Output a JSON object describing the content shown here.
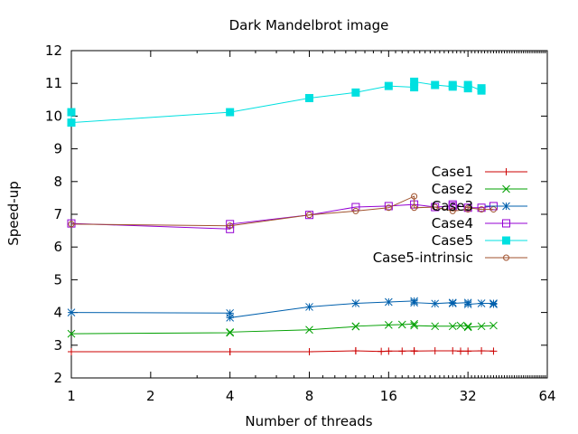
{
  "chart_data": {
    "type": "line",
    "title": "Dark Mandelbrot image",
    "xlabel": "Number of threads",
    "ylabel": "Speed-up",
    "x_scale": "log2",
    "xlim": [
      1,
      64
    ],
    "ylim": [
      2,
      12
    ],
    "x_ticks": [
      1,
      2,
      4,
      8,
      16,
      32,
      64
    ],
    "x_tick_labels": [
      "1",
      "2",
      "4",
      "8",
      "16",
      "32",
      "64"
    ],
    "y_ticks": [
      2,
      3,
      4,
      5,
      6,
      7,
      8,
      9,
      10,
      11,
      12
    ],
    "y_tick_labels": [
      "2",
      "3",
      "4",
      "5",
      "6",
      "7",
      "8",
      "9",
      "10",
      "11",
      "12"
    ],
    "grid": false,
    "legend_position": "right",
    "series": [
      {
        "name": "Case1",
        "color": "#cc0000",
        "marker": "plus",
        "points": [
          [
            1,
            2.8
          ],
          [
            1,
            2.8
          ],
          [
            4,
            2.8
          ],
          [
            4,
            2.8
          ],
          [
            8,
            2.8
          ],
          [
            12,
            2.83
          ],
          [
            12,
            2.83
          ],
          [
            15,
            2.81
          ],
          [
            16,
            2.82
          ],
          [
            18,
            2.82
          ],
          [
            20,
            2.83
          ],
          [
            20,
            2.82
          ],
          [
            24,
            2.83
          ],
          [
            28,
            2.83
          ],
          [
            30,
            2.82
          ],
          [
            32,
            2.82
          ],
          [
            36,
            2.83
          ],
          [
            40,
            2.82
          ]
        ]
      },
      {
        "name": "Case2",
        "color": "#00a000",
        "marker": "cross",
        "points": [
          [
            1,
            3.35
          ],
          [
            4,
            3.38
          ],
          [
            4,
            3.4
          ],
          [
            8,
            3.47
          ],
          [
            12,
            3.57
          ],
          [
            12,
            3.58
          ],
          [
            16,
            3.62
          ],
          [
            18,
            3.63
          ],
          [
            20,
            3.65
          ],
          [
            20,
            3.6
          ],
          [
            24,
            3.58
          ],
          [
            28,
            3.58
          ],
          [
            30,
            3.6
          ],
          [
            32,
            3.58
          ],
          [
            32,
            3.55
          ],
          [
            36,
            3.58
          ],
          [
            40,
            3.6
          ]
        ]
      },
      {
        "name": "Case3",
        "color": "#0060ad",
        "marker": "star",
        "points": [
          [
            1,
            4.0
          ],
          [
            4,
            3.98
          ],
          [
            4,
            3.84
          ],
          [
            8,
            4.17
          ],
          [
            12,
            4.28
          ],
          [
            16,
            4.32
          ],
          [
            20,
            4.35
          ],
          [
            20,
            4.3
          ],
          [
            24,
            4.27
          ],
          [
            28,
            4.3
          ],
          [
            28,
            4.28
          ],
          [
            32,
            4.3
          ],
          [
            32,
            4.25
          ],
          [
            36,
            4.28
          ],
          [
            40,
            4.28
          ],
          [
            40,
            4.25
          ]
        ]
      },
      {
        "name": "Case4",
        "color": "#9400d3",
        "marker": "square",
        "points": [
          [
            1,
            6.72
          ],
          [
            4,
            6.55
          ],
          [
            4,
            6.7
          ],
          [
            8,
            6.98
          ],
          [
            12,
            7.22
          ],
          [
            16,
            7.25
          ],
          [
            20,
            7.3
          ],
          [
            24,
            7.22
          ],
          [
            28,
            7.25
          ],
          [
            28,
            7.3
          ],
          [
            32,
            7.2
          ],
          [
            36,
            7.2
          ],
          [
            40,
            7.25
          ]
        ]
      },
      {
        "name": "Case5",
        "color": "#00e0e0",
        "marker": "filled-square",
        "points": [
          [
            1,
            10.12
          ],
          [
            1,
            9.8
          ],
          [
            4,
            10.12
          ],
          [
            8,
            10.55
          ],
          [
            12,
            10.72
          ],
          [
            16,
            10.92
          ],
          [
            20,
            10.88
          ],
          [
            20,
            11.05
          ],
          [
            24,
            10.95
          ],
          [
            28,
            10.9
          ],
          [
            28,
            10.95
          ],
          [
            32,
            10.85
          ],
          [
            32,
            10.95
          ],
          [
            36,
            10.78
          ],
          [
            36,
            10.85
          ]
        ]
      },
      {
        "name": "Case5-intrinsic",
        "color": "#a0522d",
        "marker": "circle",
        "points": [
          [
            1,
            6.7
          ],
          [
            4,
            6.65
          ],
          [
            8,
            6.98
          ],
          [
            12,
            7.1
          ],
          [
            16,
            7.2
          ],
          [
            20,
            7.55
          ],
          [
            20,
            7.2
          ],
          [
            24,
            7.22
          ],
          [
            28,
            7.1
          ],
          [
            32,
            7.15
          ],
          [
            32,
            7.2
          ],
          [
            36,
            7.15
          ],
          [
            40,
            7.15
          ]
        ]
      }
    ]
  }
}
